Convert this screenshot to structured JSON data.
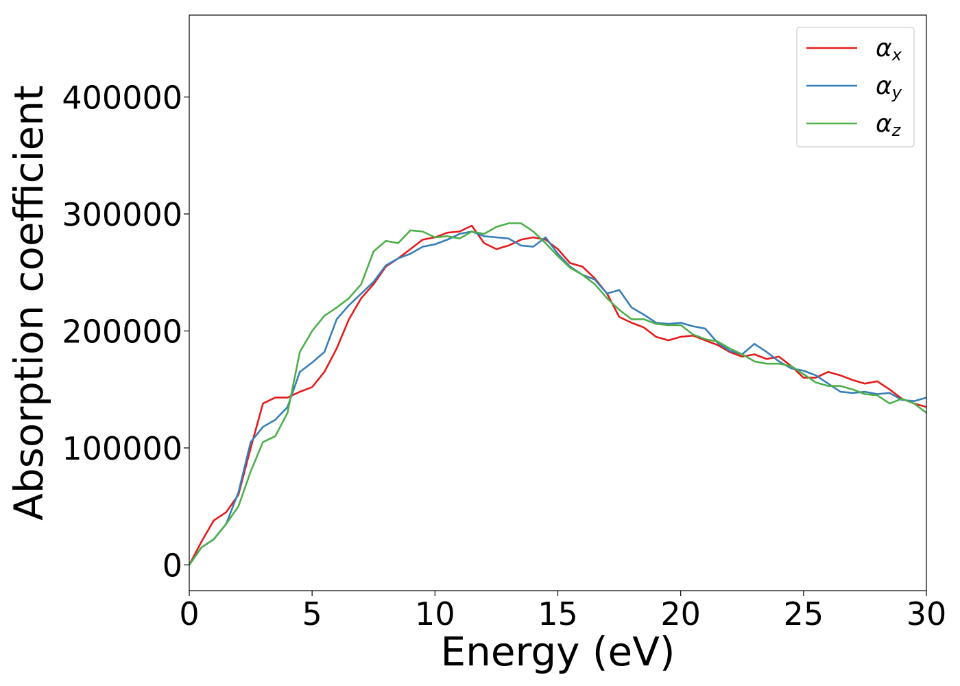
{
  "chart_data": {
    "type": "line",
    "xlabel": "Energy (eV)",
    "ylabel": "Absorption coefficient",
    "xlim": [
      0,
      30
    ],
    "ylim": [
      -22000,
      470000
    ],
    "xticks": [
      0,
      5,
      10,
      15,
      20,
      25,
      30
    ],
    "xtick_labels": [
      "0",
      "5",
      "10",
      "15",
      "20",
      "25",
      "30"
    ],
    "yticks": [
      0,
      100000,
      200000,
      300000,
      400000
    ],
    "ytick_labels": [
      "0",
      "100000",
      "200000",
      "300000",
      "400000"
    ],
    "grid": false,
    "legend_position": "top-right",
    "series": [
      {
        "name": "α",
        "name_sub": "x",
        "color": "#e41a1c",
        "points": [
          [
            0,
            0
          ],
          [
            0.5,
            20000
          ],
          [
            1.0,
            38000
          ],
          [
            1.5,
            45000
          ],
          [
            2.0,
            60000
          ],
          [
            2.5,
            100000
          ],
          [
            3.0,
            138000
          ],
          [
            3.5,
            143000
          ],
          [
            4.0,
            143000
          ],
          [
            4.5,
            148000
          ],
          [
            5.0,
            152000
          ],
          [
            5.5,
            165000
          ],
          [
            6.0,
            185000
          ],
          [
            6.5,
            210000
          ],
          [
            7.0,
            228000
          ],
          [
            7.5,
            240000
          ],
          [
            8.0,
            255000
          ],
          [
            8.5,
            262000
          ],
          [
            9.0,
            270000
          ],
          [
            9.5,
            278000
          ],
          [
            10.0,
            280000
          ],
          [
            10.5,
            284000
          ],
          [
            11.0,
            285000
          ],
          [
            11.5,
            290000
          ],
          [
            12.0,
            275000
          ],
          [
            12.5,
            270000
          ],
          [
            13.0,
            273000
          ],
          [
            13.5,
            278000
          ],
          [
            14.0,
            280000
          ],
          [
            14.5,
            278000
          ],
          [
            15.0,
            270000
          ],
          [
            15.5,
            258000
          ],
          [
            16.0,
            255000
          ],
          [
            16.5,
            245000
          ],
          [
            17.0,
            232000
          ],
          [
            17.5,
            212000
          ],
          [
            18.0,
            207000
          ],
          [
            18.5,
            203000
          ],
          [
            19.0,
            195000
          ],
          [
            19.5,
            192000
          ],
          [
            20.0,
            195000
          ],
          [
            20.5,
            196000
          ],
          [
            21.0,
            192000
          ],
          [
            21.5,
            188000
          ],
          [
            22.0,
            182000
          ],
          [
            22.5,
            178000
          ],
          [
            23.0,
            180000
          ],
          [
            23.5,
            176000
          ],
          [
            24.0,
            178000
          ],
          [
            24.5,
            170000
          ],
          [
            25.0,
            160000
          ],
          [
            25.5,
            160000
          ],
          [
            26.0,
            165000
          ],
          [
            26.5,
            162000
          ],
          [
            27.0,
            158000
          ],
          [
            27.5,
            155000
          ],
          [
            28.0,
            157000
          ],
          [
            28.5,
            150000
          ],
          [
            29.0,
            142000
          ],
          [
            29.5,
            138000
          ],
          [
            30.0,
            135000
          ]
        ]
      },
      {
        "name": "α",
        "name_sub": "y",
        "color": "#377eb8",
        "points": [
          [
            0,
            0
          ],
          [
            0.5,
            15000
          ],
          [
            1.0,
            22000
          ],
          [
            1.5,
            35000
          ],
          [
            2.0,
            62000
          ],
          [
            2.5,
            105000
          ],
          [
            3.0,
            118000
          ],
          [
            3.5,
            124000
          ],
          [
            4.0,
            135000
          ],
          [
            4.5,
            165000
          ],
          [
            5.0,
            173000
          ],
          [
            5.5,
            182000
          ],
          [
            6.0,
            210000
          ],
          [
            6.5,
            222000
          ],
          [
            7.0,
            232000
          ],
          [
            7.5,
            242000
          ],
          [
            8.0,
            256000
          ],
          [
            8.5,
            262000
          ],
          [
            9.0,
            266000
          ],
          [
            9.5,
            272000
          ],
          [
            10.0,
            274000
          ],
          [
            10.5,
            278000
          ],
          [
            11.0,
            283000
          ],
          [
            11.5,
            285000
          ],
          [
            12.0,
            281000
          ],
          [
            12.5,
            280000
          ],
          [
            13.0,
            279000
          ],
          [
            13.5,
            273000
          ],
          [
            14.0,
            272000
          ],
          [
            14.5,
            280000
          ],
          [
            15.0,
            266000
          ],
          [
            15.5,
            255000
          ],
          [
            16.0,
            248000
          ],
          [
            16.5,
            244000
          ],
          [
            17.0,
            232000
          ],
          [
            17.5,
            235000
          ],
          [
            18.0,
            220000
          ],
          [
            18.5,
            214000
          ],
          [
            19.0,
            207000
          ],
          [
            19.5,
            206000
          ],
          [
            20.0,
            207000
          ],
          [
            20.5,
            204000
          ],
          [
            21.0,
            202000
          ],
          [
            21.5,
            190000
          ],
          [
            22.0,
            183000
          ],
          [
            22.5,
            180000
          ],
          [
            23.0,
            189000
          ],
          [
            23.5,
            182000
          ],
          [
            24.0,
            174000
          ],
          [
            24.5,
            168000
          ],
          [
            25.0,
            166000
          ],
          [
            25.5,
            162000
          ],
          [
            26.0,
            155000
          ],
          [
            26.5,
            148000
          ],
          [
            27.0,
            147000
          ],
          [
            27.5,
            148000
          ],
          [
            28.0,
            146000
          ],
          [
            28.5,
            147000
          ],
          [
            29.0,
            141000
          ],
          [
            29.5,
            140000
          ],
          [
            30.0,
            143000
          ]
        ]
      },
      {
        "name": "α",
        "name_sub": "z",
        "color": "#4daf4a",
        "points": [
          [
            0,
            0
          ],
          [
            0.5,
            15000
          ],
          [
            1.0,
            22000
          ],
          [
            1.5,
            35000
          ],
          [
            2.0,
            50000
          ],
          [
            2.5,
            80000
          ],
          [
            3.0,
            105000
          ],
          [
            3.5,
            110000
          ],
          [
            4.0,
            130000
          ],
          [
            4.5,
            182000
          ],
          [
            5.0,
            200000
          ],
          [
            5.5,
            213000
          ],
          [
            6.0,
            220000
          ],
          [
            6.5,
            228000
          ],
          [
            7.0,
            240000
          ],
          [
            7.5,
            268000
          ],
          [
            8.0,
            277000
          ],
          [
            8.5,
            275000
          ],
          [
            9.0,
            286000
          ],
          [
            9.5,
            285000
          ],
          [
            10.0,
            280000
          ],
          [
            10.5,
            281000
          ],
          [
            11.0,
            279000
          ],
          [
            11.5,
            285000
          ],
          [
            12.0,
            283000
          ],
          [
            12.5,
            289000
          ],
          [
            13.0,
            292000
          ],
          [
            13.5,
            292000
          ],
          [
            14.0,
            285000
          ],
          [
            14.5,
            275000
          ],
          [
            15.0,
            264000
          ],
          [
            15.5,
            254000
          ],
          [
            16.0,
            248000
          ],
          [
            16.5,
            240000
          ],
          [
            17.0,
            228000
          ],
          [
            17.5,
            218000
          ],
          [
            18.0,
            210000
          ],
          [
            18.5,
            210000
          ],
          [
            19.0,
            206000
          ],
          [
            19.5,
            205000
          ],
          [
            20.0,
            205000
          ],
          [
            20.5,
            197000
          ],
          [
            21.0,
            193000
          ],
          [
            21.5,
            191000
          ],
          [
            22.0,
            185000
          ],
          [
            22.5,
            180000
          ],
          [
            23.0,
            174000
          ],
          [
            23.5,
            172000
          ],
          [
            24.0,
            172000
          ],
          [
            24.5,
            170000
          ],
          [
            25.0,
            163000
          ],
          [
            25.5,
            156000
          ],
          [
            26.0,
            153000
          ],
          [
            26.5,
            153000
          ],
          [
            27.0,
            150000
          ],
          [
            27.5,
            146000
          ],
          [
            28.0,
            145000
          ],
          [
            28.5,
            138000
          ],
          [
            29.0,
            142000
          ],
          [
            29.5,
            138000
          ],
          [
            30.0,
            130000
          ]
        ]
      }
    ]
  }
}
